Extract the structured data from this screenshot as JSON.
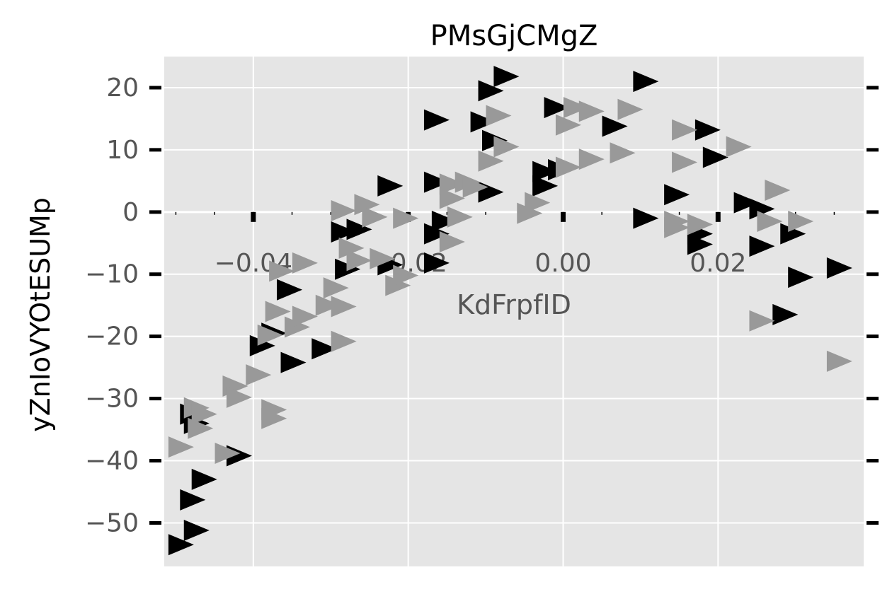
{
  "chart_data": {
    "type": "scatter",
    "title": "PMsGjCMgZ",
    "xlabel": "KdFrpfID",
    "ylabel": "yZnIoVYOtESUMp",
    "xlim": [
      -0.0515,
      0.0388
    ],
    "ylim": [
      -57,
      25
    ],
    "x_ticks": [
      -0.04,
      -0.02,
      0.0,
      0.02
    ],
    "x_tick_labels": [
      "−0.04",
      "−0.02",
      "0.00",
      "0.02"
    ],
    "y_ticks": [
      20,
      10,
      0,
      -10,
      -20,
      -30,
      -40,
      -50
    ],
    "y_tick_labels": [
      "20",
      "10",
      "0",
      "−10",
      "−20",
      "−30",
      "−40",
      "−50"
    ],
    "grid": true,
    "legend": "none",
    "marker": "right-triangle",
    "colors": {
      "background": "#e5e5e5",
      "grid": "#ffffff",
      "series_dark": "#000000",
      "series_light": "#999999"
    },
    "series": [
      {
        "color": "#000000",
        "points": [
          [
            -0.0495,
            -53.5
          ],
          [
            -0.0475,
            -51.2
          ],
          [
            -0.048,
            -46.3
          ],
          [
            -0.0465,
            -43.0
          ],
          [
            -0.042,
            -39.2
          ],
          [
            -0.0475,
            -34.0
          ],
          [
            -0.048,
            -32.5
          ],
          [
            -0.039,
            -21.5
          ],
          [
            -0.0375,
            -19.5
          ],
          [
            -0.035,
            -24.2
          ],
          [
            -0.031,
            -22.0
          ],
          [
            -0.0355,
            -12.5
          ],
          [
            -0.028,
            -9.2
          ],
          [
            -0.0165,
            -8.2
          ],
          [
            -0.0225,
            -8.5
          ],
          [
            -0.0285,
            -3.2
          ],
          [
            -0.0265,
            -2.8
          ],
          [
            -0.0165,
            -3.5
          ],
          [
            -0.0155,
            -1.5
          ],
          [
            -0.0225,
            4.2
          ],
          [
            -0.0165,
            4.8
          ],
          [
            -0.0165,
            14.8
          ],
          [
            -0.0105,
            14.5
          ],
          [
            -0.009,
            11.5
          ],
          [
            -0.0095,
            19.5
          ],
          [
            -0.0075,
            21.8
          ],
          [
            -0.0095,
            3.2
          ],
          [
            -0.0025,
            6.5
          ],
          [
            -0.0005,
            6.8
          ],
          [
            -0.0025,
            4.2
          ],
          [
            -0.001,
            16.8
          ],
          [
            0.0065,
            13.8
          ],
          [
            0.0105,
            21.0
          ],
          [
            0.0105,
            -1.0
          ],
          [
            0.0145,
            2.8
          ],
          [
            0.0185,
            13.2
          ],
          [
            0.0195,
            8.8
          ],
          [
            0.0175,
            -3.5
          ],
          [
            0.0175,
            -5.2
          ],
          [
            0.0235,
            1.5
          ],
          [
            0.0255,
            0.5
          ],
          [
            0.0255,
            -5.5
          ],
          [
            0.0295,
            -3.5
          ],
          [
            0.0305,
            -10.5
          ],
          [
            0.0285,
            -16.5
          ],
          [
            0.0355,
            -9.0
          ]
        ]
      },
      {
        "color": "#999999",
        "points": [
          [
            -0.0495,
            -37.8
          ],
          [
            -0.0475,
            -31.5
          ],
          [
            -0.0465,
            -32.5
          ],
          [
            -0.047,
            -34.8
          ],
          [
            -0.0425,
            -28.0
          ],
          [
            -0.0395,
            -26.2
          ],
          [
            -0.042,
            -29.8
          ],
          [
            -0.0435,
            -38.8
          ],
          [
            -0.0375,
            -31.8
          ],
          [
            -0.0375,
            -33.2
          ],
          [
            -0.038,
            -19.8
          ],
          [
            -0.037,
            -16.0
          ],
          [
            -0.0345,
            -18.5
          ],
          [
            -0.0335,
            -16.8
          ],
          [
            -0.0285,
            -20.8
          ],
          [
            -0.0305,
            -15.0
          ],
          [
            -0.0285,
            -15.2
          ],
          [
            -0.0295,
            -12.2
          ],
          [
            -0.0365,
            -9.5
          ],
          [
            -0.0335,
            -8.2
          ],
          [
            -0.0275,
            -5.8
          ],
          [
            -0.0265,
            -7.8
          ],
          [
            -0.0215,
            -11.8
          ],
          [
            -0.0205,
            -10.2
          ],
          [
            -0.0235,
            -7.5
          ],
          [
            -0.0285,
            0.2
          ],
          [
            -0.0255,
            1.2
          ],
          [
            -0.0245,
            -0.8
          ],
          [
            -0.0205,
            -1.0
          ],
          [
            -0.0135,
            -0.8
          ],
          [
            -0.0145,
            -4.8
          ],
          [
            -0.0145,
            2.2
          ],
          [
            -0.0145,
            4.5
          ],
          [
            -0.0125,
            4.8
          ],
          [
            -0.0115,
            4.0
          ],
          [
            -0.0095,
            8.2
          ],
          [
            -0.0075,
            10.5
          ],
          [
            -0.0085,
            15.5
          ],
          [
            -0.0045,
            -0.2
          ],
          [
            -0.0035,
            1.5
          ],
          [
            0.0005,
            14.0
          ],
          [
            0.0015,
            16.8
          ],
          [
            0.0035,
            16.2
          ],
          [
            0.0005,
            7.2
          ],
          [
            0.0035,
            8.5
          ],
          [
            0.0075,
            9.5
          ],
          [
            0.0085,
            16.5
          ],
          [
            0.0155,
            13.2
          ],
          [
            0.0155,
            8.0
          ],
          [
            0.0145,
            -1.5
          ],
          [
            0.0145,
            -2.5
          ],
          [
            0.0175,
            -2.0
          ],
          [
            0.0225,
            10.5
          ],
          [
            0.0275,
            3.5
          ],
          [
            0.0265,
            -1.5
          ],
          [
            0.0305,
            -1.5
          ],
          [
            0.0255,
            -17.5
          ],
          [
            0.0355,
            -24.0
          ]
        ]
      }
    ]
  }
}
